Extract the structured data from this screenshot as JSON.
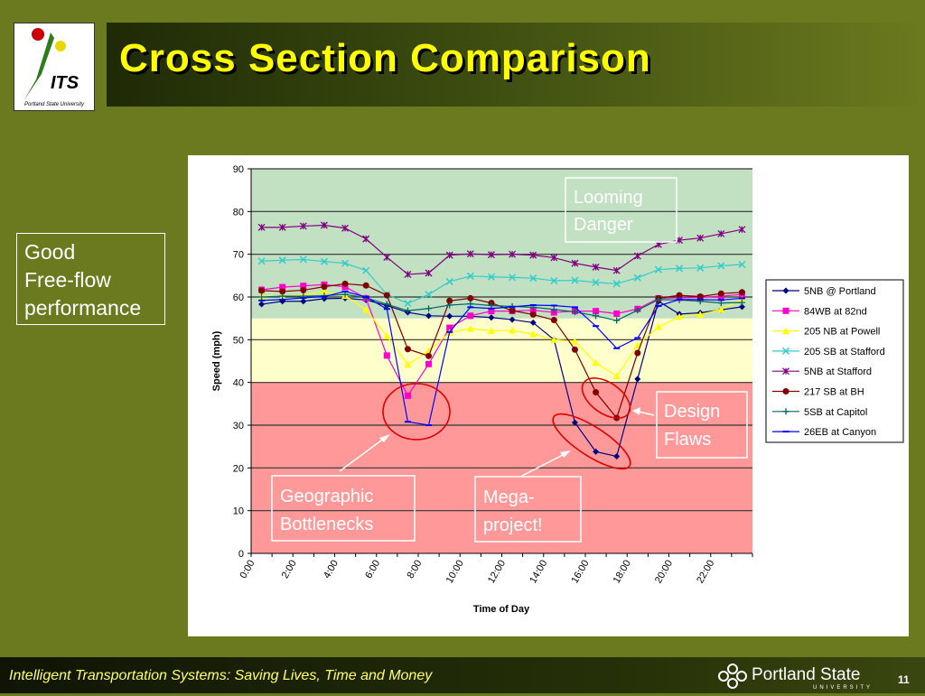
{
  "slide": {
    "title": "Cross Section Comparison",
    "footer": "Intelligent Transportation Systems: Saving Lives, Time and Money",
    "page_number": "11",
    "logo_text": "ITS",
    "logo_subtext": "Portland State University",
    "psu_text": "Portland State",
    "psu_subtext": "UNIVERSITY",
    "callout_left": [
      "Good",
      "Free-flow",
      "performance"
    ]
  },
  "chart_data": {
    "type": "line",
    "xlabel": "Time of Day",
    "ylabel": "Speed (mph)",
    "ylim": [
      0,
      90
    ],
    "yticks": [
      0,
      10,
      20,
      30,
      40,
      50,
      60,
      70,
      80,
      90
    ],
    "xticks": [
      "0:00",
      "2:00",
      "4:00",
      "6:00",
      "8:00",
      "10:00",
      "12:00",
      "14:00",
      "16:00",
      "18:00",
      "20:00",
      "22:00"
    ],
    "x": [
      0,
      1,
      2,
      3,
      4,
      5,
      6,
      7,
      8,
      9,
      10,
      11,
      12,
      13,
      14,
      15,
      16,
      17,
      18,
      19,
      20,
      21,
      22,
      23
    ],
    "bands": [
      {
        "from": 0,
        "to": 40,
        "color": "#ff9999"
      },
      {
        "from": 40,
        "to": 55,
        "color": "#ffffcc"
      },
      {
        "from": 55,
        "to": 90,
        "color": "#c2e0c2"
      }
    ],
    "grid": "horizontal",
    "legend": "right",
    "series": [
      {
        "name": "5NB @ Portland",
        "color": "#000080",
        "marker": "diamond",
        "values": [
          58.3,
          59.0,
          59.0,
          59.6,
          59.7,
          59.3,
          58.0,
          56.4,
          55.6,
          55.5,
          55.5,
          55.2,
          54.7,
          54.0,
          50.0,
          30.6,
          23.8,
          22.7,
          40.8,
          59.0,
          56.0,
          56.3,
          57.0,
          57.7
        ]
      },
      {
        "name": "84WB at 82nd",
        "color": "#ff00cc",
        "marker": "square",
        "values": [
          61.7,
          62.3,
          62.6,
          62.9,
          62.4,
          59.7,
          46.3,
          36.9,
          44.3,
          52.8,
          55.6,
          56.7,
          56.7,
          56.9,
          56.4,
          56.7,
          56.7,
          56.1,
          57.2,
          59.7,
          59.8,
          59.9,
          60.2,
          60.6
        ]
      },
      {
        "name": "205 NB at Powell",
        "color": "#ffff00",
        "marker": "triangle",
        "values": [
          60.2,
          60.2,
          60.4,
          61.3,
          60.3,
          57.0,
          50.8,
          44.2,
          47.4,
          51.7,
          52.6,
          52.1,
          52.2,
          51.3,
          50.0,
          49.6,
          44.6,
          41.5,
          48.7,
          53.0,
          55.4,
          55.9,
          57.1,
          59.4
        ]
      },
      {
        "name": "205 SB at Stafford",
        "color": "#33cccc",
        "marker": "x",
        "values": [
          68.4,
          68.6,
          68.8,
          68.3,
          67.9,
          66.2,
          60.6,
          58.5,
          60.6,
          63.6,
          64.9,
          64.7,
          64.6,
          64.4,
          63.8,
          63.9,
          63.4,
          63.1,
          64.5,
          66.4,
          66.7,
          66.8,
          67.3,
          67.6
        ]
      },
      {
        "name": "5NB at Stafford",
        "color": "#800080",
        "marker": "star",
        "values": [
          76.3,
          76.3,
          76.6,
          76.8,
          76.1,
          73.6,
          69.3,
          65.3,
          65.6,
          69.8,
          70.1,
          69.9,
          70.0,
          69.8,
          69.2,
          67.9,
          67.0,
          66.2,
          69.6,
          72.3,
          73.3,
          73.8,
          74.8,
          75.8
        ]
      },
      {
        "name": "217 SB at BH",
        "color": "#800000",
        "marker": "circle",
        "values": [
          61.5,
          61.3,
          61.6,
          62.4,
          63.1,
          62.7,
          60.4,
          47.8,
          46.2,
          59.1,
          59.7,
          58.6,
          56.8,
          55.9,
          54.6,
          47.7,
          37.7,
          31.7,
          46.9,
          59.7,
          60.4,
          60.1,
          60.8,
          61.1
        ]
      },
      {
        "name": "5SB at Capitol",
        "color": "#006666",
        "marker": "plus",
        "values": [
          60.0,
          60.2,
          60.2,
          60.3,
          60.6,
          59.8,
          58.3,
          56.8,
          57.3,
          58.1,
          58.4,
          58.0,
          57.8,
          57.6,
          57.1,
          56.5,
          55.6,
          54.5,
          56.9,
          59.4,
          59.3,
          59.0,
          58.6,
          58.7
        ]
      },
      {
        "name": "26EB at Canyon",
        "color": "#0000ff",
        "marker": "dash",
        "values": [
          59.2,
          59.4,
          59.8,
          60.1,
          61.3,
          60.0,
          57.2,
          30.8,
          30.0,
          51.8,
          57.6,
          57.3,
          57.7,
          58.1,
          58.0,
          57.6,
          53.2,
          48.0,
          50.4,
          57.9,
          59.4,
          59.4,
          59.3,
          59.7
        ]
      }
    ],
    "annotations": [
      {
        "lines": [
          "Looming",
          "Danger"
        ]
      },
      {
        "lines": [
          "Design",
          "Flaws"
        ]
      },
      {
        "lines": [
          "Geographic",
          "Bottlenecks"
        ]
      },
      {
        "lines": [
          "Mega-",
          "project!"
        ]
      }
    ]
  }
}
